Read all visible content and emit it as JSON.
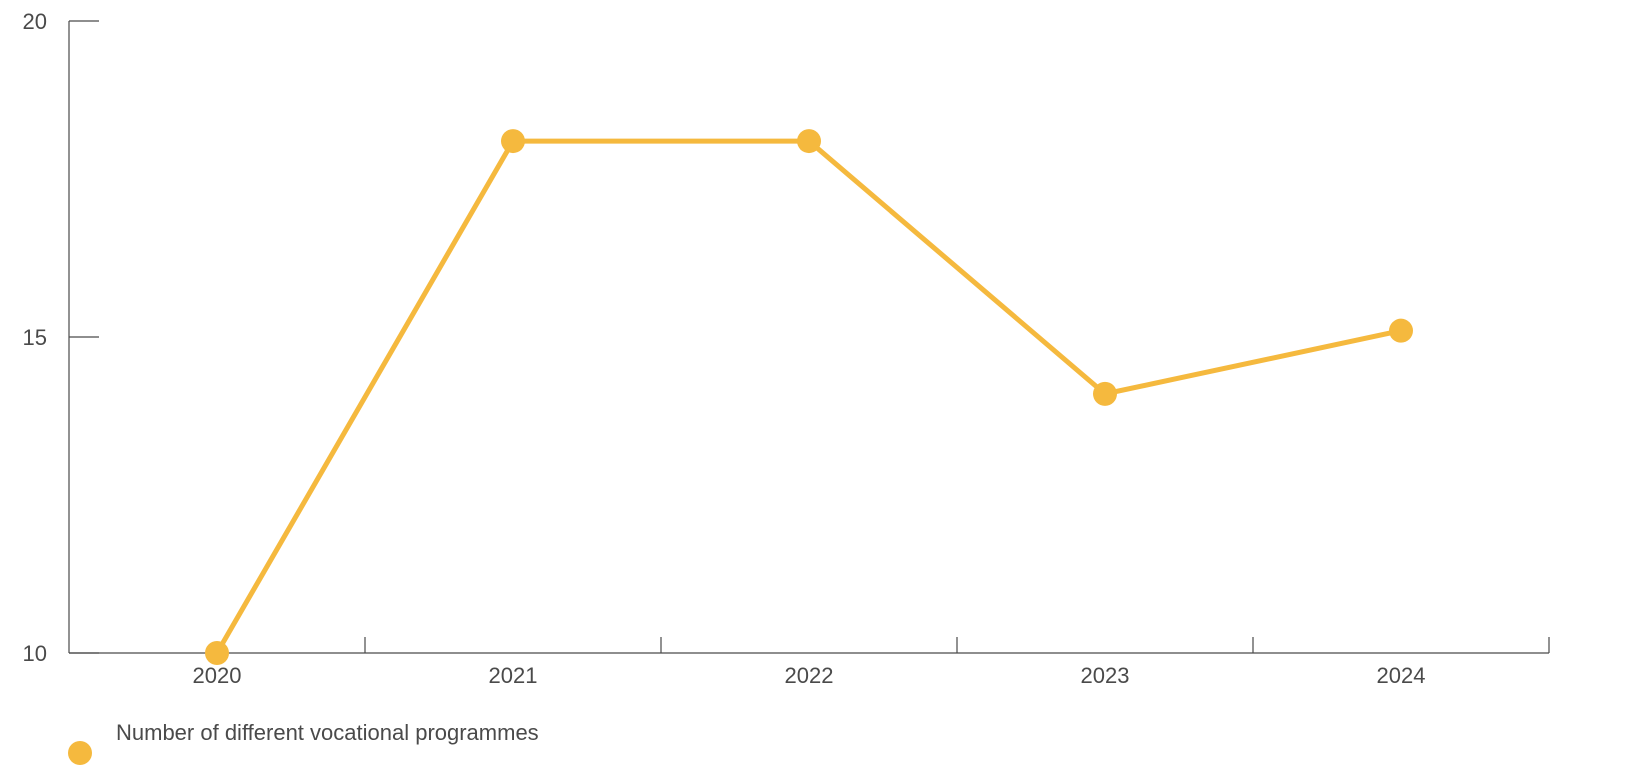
{
  "chart_data": {
    "type": "line",
    "title": "",
    "xlabel": "",
    "ylabel": "",
    "categories": [
      "2020",
      "2021",
      "2022",
      "2023",
      "2024"
    ],
    "series": [
      {
        "name": "Number of different vocational programmes",
        "values": [
          10,
          18.1,
          18.1,
          14.1,
          15.1
        ],
        "color": "#F5B93E"
      }
    ],
    "ylim": [
      10,
      20
    ],
    "yticks": [
      "10",
      "15",
      "20"
    ],
    "grid": false,
    "legend_position": "bottom-left"
  },
  "legend": {
    "label": "Number of different vocational programmes"
  },
  "colors": {
    "series": "#F5B93E",
    "axis": "#4a4a4a"
  }
}
